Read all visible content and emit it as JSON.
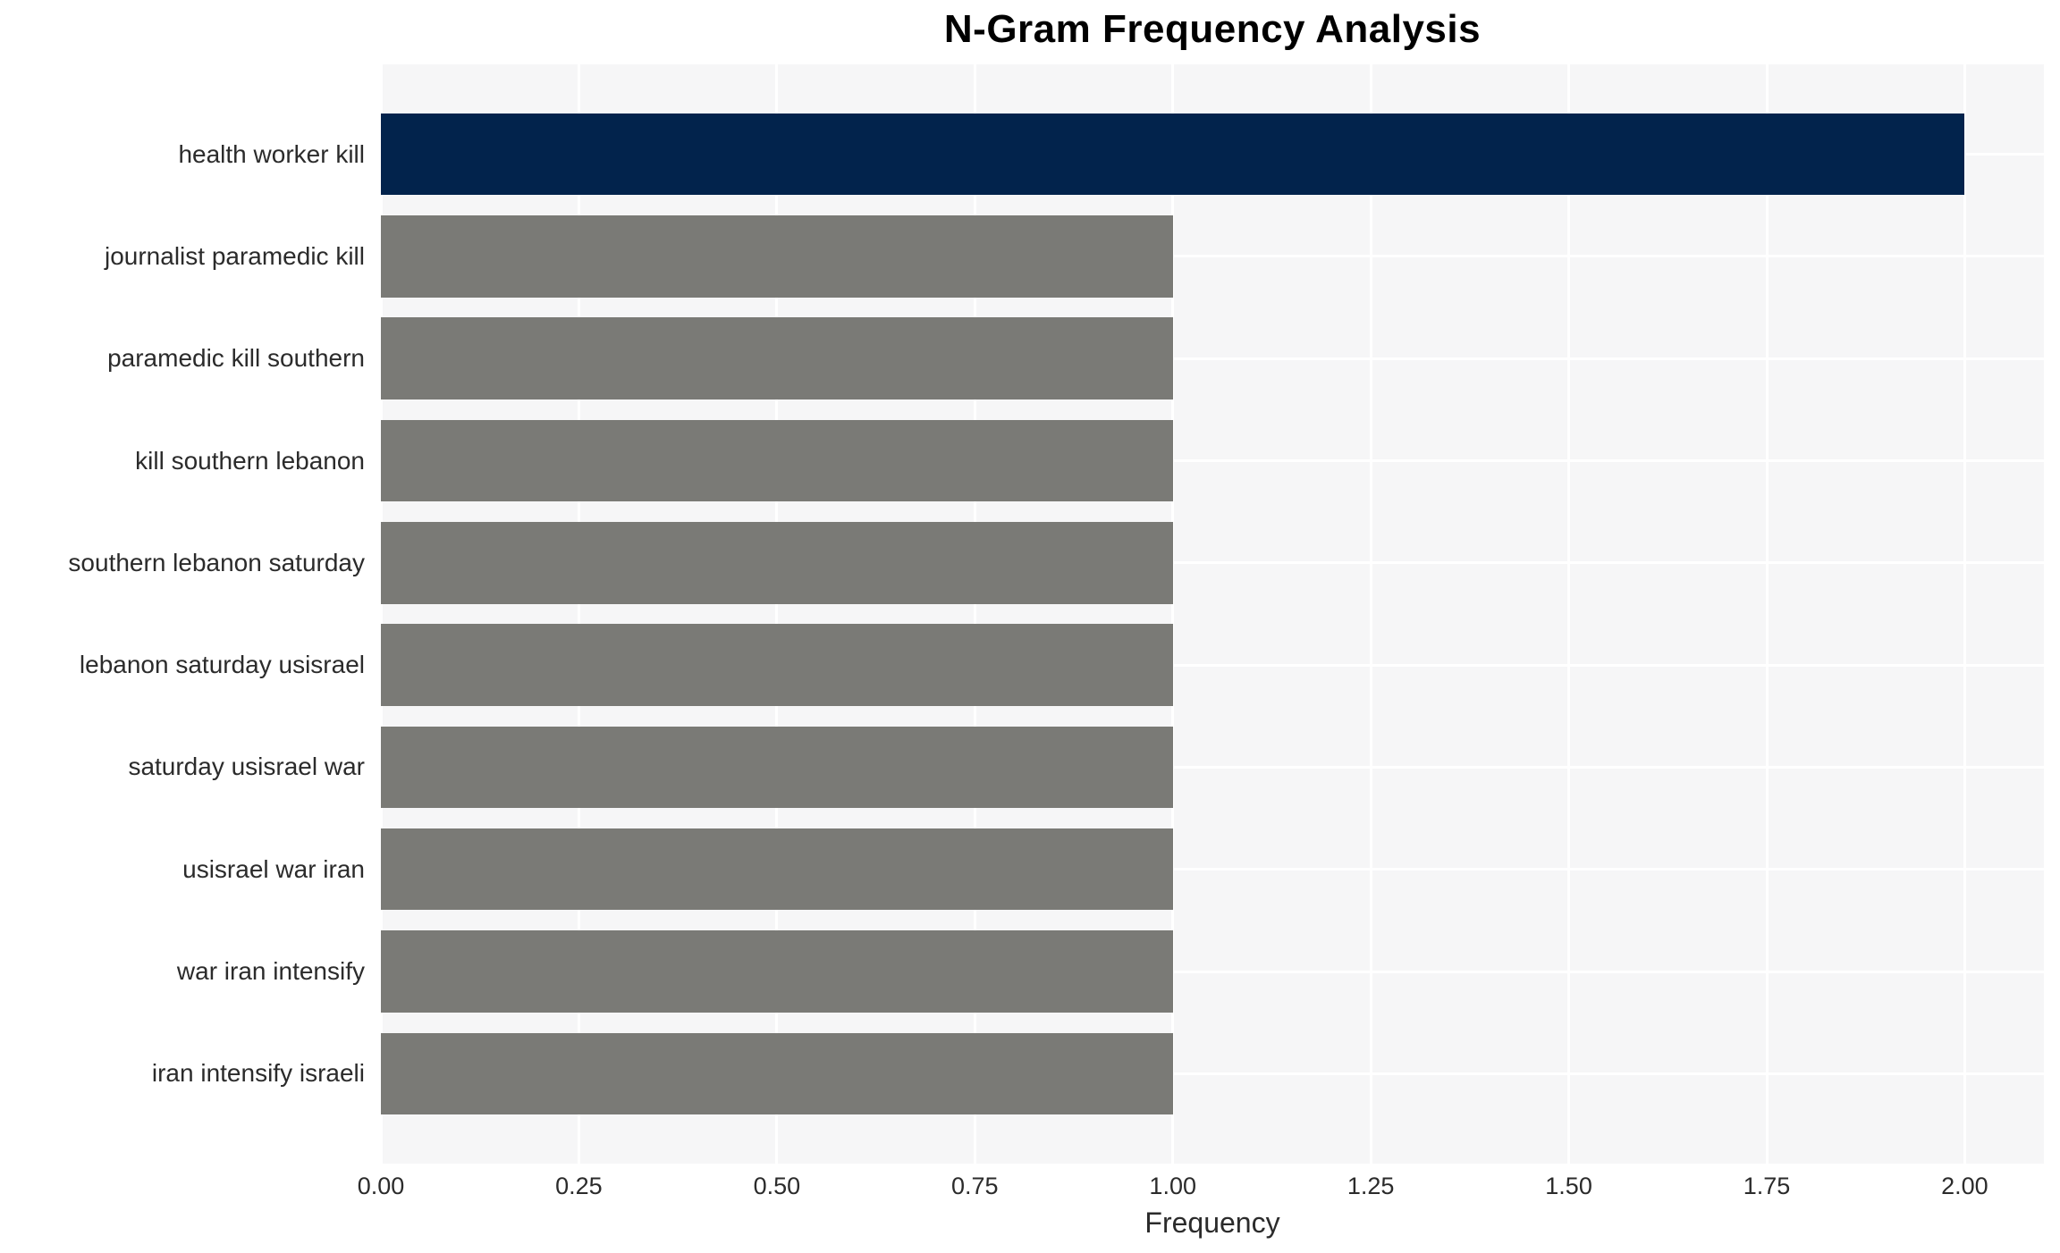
{
  "chart_data": {
    "type": "bar",
    "orientation": "horizontal",
    "title": "N-Gram Frequency Analysis",
    "xlabel": "Frequency",
    "ylabel": "",
    "categories": [
      "health worker kill",
      "journalist paramedic kill",
      "paramedic kill southern",
      "kill southern lebanon",
      "southern lebanon saturday",
      "lebanon saturday usisrael",
      "saturday usisrael war",
      "usisrael war iran",
      "war iran intensify",
      "iran intensify israeli"
    ],
    "values": [
      2,
      1,
      1,
      1,
      1,
      1,
      1,
      1,
      1,
      1
    ],
    "bar_colors": [
      "#02234c",
      "#7a7a76",
      "#7a7a76",
      "#7a7a76",
      "#7a7a76",
      "#7a7a76",
      "#7a7a76",
      "#7a7a76",
      "#7a7a76",
      "#7a7a76"
    ],
    "highlight_color": "#02234c",
    "default_bar_color": "#7a7a76",
    "xticks": [
      0,
      0.25,
      0.5,
      0.75,
      1.0,
      1.25,
      1.5,
      1.75,
      2.0
    ],
    "xtick_labels": [
      "0.00",
      "0.25",
      "0.50",
      "0.75",
      "1.00",
      "1.25",
      "1.50",
      "1.75",
      "2.00"
    ],
    "xlim": [
      0,
      2.1
    ],
    "grid": true,
    "legend": false,
    "plot_bg": "#f6f6f7",
    "grid_color": "#ffffff",
    "text_color": "#2b2b2b",
    "title_color": "#000000"
  }
}
